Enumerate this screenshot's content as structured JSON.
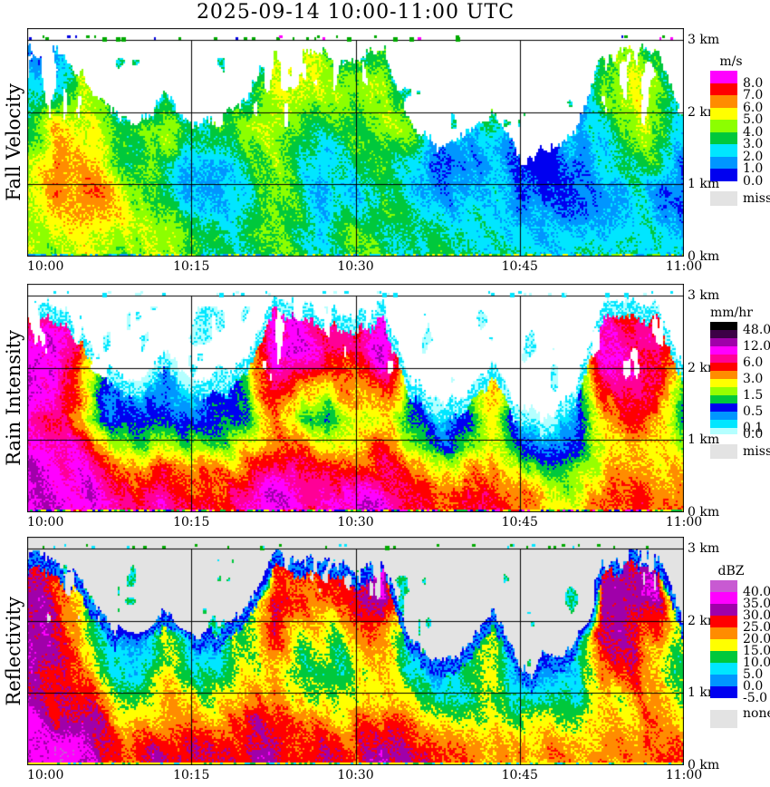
{
  "title": "2025-09-14  10:00-11:00 UTC",
  "axes": {
    "x_ticks": [
      "10:00",
      "10:15",
      "10:30",
      "10:45",
      "11:00"
    ],
    "y_ticks": [
      "0 km",
      "1 km",
      "2 km",
      "3 km"
    ]
  },
  "chart_data": [
    {
      "panel": "fall-velocity",
      "type": "heatmap",
      "ylabel": "Fall Velocity",
      "units": "m/s",
      "x_ticks": [
        "10:00",
        "10:15",
        "10:30",
        "10:45",
        "11:00"
      ],
      "y_ticks": [
        "0 km",
        "1 km",
        "2 km",
        "3 km"
      ],
      "x_range_minutes": [
        0,
        60
      ],
      "y_range_km": [
        0,
        3
      ],
      "background": "#ffffff",
      "colorbar": {
        "title": "m/s",
        "labels": [
          "8.0",
          "7.0",
          "6.0",
          "5.0",
          "4.0",
          "3.0",
          "2.0",
          "1.0",
          "0.0"
        ],
        "missing_label": "miss",
        "missing_color": "#e3e3e3"
      },
      "boundaries": [
        8,
        7,
        6,
        5,
        4,
        3,
        2,
        1,
        0
      ],
      "colors": [
        "#ff00ff",
        "#ff0000",
        "#ff8c00",
        "#ffff00",
        "#8cff00",
        "#00c83c",
        "#00e6ff",
        "#0096ff",
        "#0000f0"
      ],
      "min_valid": 0,
      "echo_top_km": [
        2.95,
        2.9,
        2.55,
        2.0,
        1.85,
        2.25,
        1.8,
        1.9,
        2.2,
        2.95,
        2.9,
        2.8,
        2.7,
        2.95,
        1.8,
        1.5,
        1.7,
        2.1,
        1.35,
        1.45,
        1.7,
        2.9,
        2.95,
        2.85,
        2.0
      ],
      "grid": {
        "times_min": [
          0,
          2.5,
          5,
          7.5,
          10,
          12.5,
          15,
          17.5,
          20,
          22.5,
          25,
          27.5,
          30,
          32.5,
          35,
          37.5,
          40,
          42.5,
          45,
          47.5,
          50,
          52.5,
          55,
          57.5,
          60
        ],
        "heights_km": [
          0.15,
          0.5,
          0.9,
          1.3,
          1.8,
          2.3,
          2.8
        ],
        "values_by_height": [
          [
            4,
            4.5,
            5,
            4.5,
            4,
            4,
            3.5,
            3,
            3.5,
            4,
            3.5,
            3,
            3.5,
            3.5,
            3,
            2.5,
            2.5,
            2.5,
            2,
            1.8,
            2,
            2.5,
            3,
            2.5,
            2
          ],
          [
            4,
            5,
            6,
            5,
            4.5,
            4,
            3.5,
            3,
            3.5,
            4,
            3.5,
            3,
            3.5,
            3.5,
            2.5,
            2,
            2,
            2.2,
            1.6,
            1.6,
            1.8,
            2.2,
            2.8,
            2.2,
            1.8
          ],
          [
            4.5,
            6,
            6.8,
            5.5,
            3.5,
            3,
            2.5,
            2.2,
            3,
            4,
            3,
            2.5,
            3,
            3.2,
            1.5,
            1.2,
            1.2,
            2,
            0.7,
            0.7,
            1.2,
            2,
            2.6,
            1.6,
            1.6
          ],
          [
            4.5,
            6.5,
            6.2,
            4,
            3,
            3.5,
            2,
            2.5,
            3,
            4,
            3,
            2.5,
            3.5,
            3.8,
            1.5,
            0.8,
            1.5,
            2.5,
            0.5,
            0.5,
            1.5,
            3,
            3.5,
            3,
            1.5
          ],
          [
            4,
            6,
            5.5,
            4,
            3.5,
            4.5,
            3,
            3.5,
            3.8,
            4.5,
            4,
            3.8,
            4.2,
            4.5,
            3.5,
            2.5,
            2.8,
            3.5,
            1.5,
            -1,
            2.5,
            3.8,
            4.2,
            3.8,
            2.5
          ],
          [
            2.5,
            3.5,
            4.5,
            2.5,
            -1,
            3.5,
            -1,
            2.5,
            3.5,
            5,
            4.5,
            4.5,
            4.5,
            5,
            2.5,
            -1,
            -1,
            3.5,
            -1,
            -1,
            -1,
            4.2,
            4.5,
            4.2,
            2.5
          ],
          [
            1.5,
            2.5,
            3,
            -1,
            -1,
            -1,
            -1,
            -1,
            -1,
            4.5,
            4.5,
            4,
            3.5,
            4.5,
            -1,
            -1,
            -1,
            -1,
            -1,
            -1,
            -1,
            4,
            4.5,
            3.5,
            -1
          ]
        ]
      }
    },
    {
      "panel": "rain-intensity",
      "type": "heatmap",
      "ylabel": "Rain Intensity",
      "units": "mm/hr",
      "x_ticks": [
        "10:00",
        "10:15",
        "10:30",
        "10:45",
        "11:00"
      ],
      "y_ticks": [
        "0 km",
        "1 km",
        "2 km",
        "3 km"
      ],
      "x_range_minutes": [
        0,
        60
      ],
      "y_range_km": [
        0,
        3
      ],
      "background": "#ffffff",
      "colorbar": {
        "title": "mm/hr",
        "labels": [
          "48.0",
          "12.0",
          "6.0",
          "3.0",
          "1.5",
          "0.5",
          "0.1",
          "0.0"
        ],
        "missing_label": "miss",
        "missing_color": "#e3e3e3"
      },
      "boundaries": [
        48,
        24,
        12,
        8,
        6,
        4,
        3,
        2,
        1.5,
        1,
        0.5,
        0.3,
        0.1,
        0
      ],
      "colors": [
        "#000000",
        "#3c0046",
        "#a000aa",
        "#ff00ff",
        "#ff0096",
        "#ff0000",
        "#ff8c00",
        "#ffff00",
        "#96ff00",
        "#00c83c",
        "#0000f0",
        "#0096ff",
        "#00e6ff",
        "#b4ffff"
      ],
      "min_valid": 0,
      "echo_top_km": [
        2.95,
        2.9,
        2.55,
        2.0,
        1.85,
        2.25,
        1.8,
        1.9,
        2.2,
        2.95,
        2.9,
        2.8,
        2.7,
        2.95,
        1.8,
        1.5,
        1.7,
        2.1,
        1.35,
        1.45,
        1.7,
        2.9,
        2.95,
        2.85,
        2.0
      ],
      "grid": {
        "times_min": [
          0,
          2.5,
          5,
          7.5,
          10,
          12.5,
          15,
          17.5,
          20,
          22.5,
          25,
          27.5,
          30,
          32.5,
          35,
          37.5,
          40,
          42.5,
          45,
          47.5,
          50,
          52.5,
          55,
          57.5,
          60
        ],
        "heights_km": [
          0.15,
          0.5,
          0.9,
          1.3,
          1.8,
          2.3,
          2.8
        ],
        "values_by_height": [
          [
            14,
            12,
            10,
            8,
            7,
            8,
            6,
            6,
            8,
            10,
            8,
            7,
            8,
            8,
            6,
            4.5,
            4.5,
            4.5,
            3,
            2.5,
            3,
            4,
            5,
            4,
            4
          ],
          [
            12,
            10,
            8,
            6,
            4.5,
            5,
            4.5,
            4,
            5,
            8,
            6,
            5,
            6,
            6,
            4,
            3,
            3,
            3.2,
            2,
            1.6,
            2,
            3,
            4,
            3,
            3
          ],
          [
            10,
            8,
            5,
            2.5,
            1.6,
            2,
            1.6,
            1.5,
            2.5,
            4,
            3,
            2.2,
            3,
            4,
            1.6,
            1,
            1.4,
            2,
            0.6,
            0.5,
            1,
            2,
            3,
            2,
            1.6
          ],
          [
            8,
            6,
            2,
            0.7,
            0.6,
            1,
            0.6,
            0.6,
            1,
            3,
            1.2,
            0.8,
            2,
            3,
            0.6,
            0.35,
            0.6,
            2,
            0.12,
            0.12,
            0.5,
            3,
            4,
            3,
            1
          ],
          [
            10,
            7,
            2.5,
            0.3,
            0.06,
            0.5,
            0.12,
            0.3,
            1,
            6,
            3,
            2,
            4,
            6,
            0.5,
            0.12,
            0.3,
            3,
            0.06,
            0.06,
            0.3,
            6,
            6,
            6,
            1
          ],
          [
            8,
            9,
            3.5,
            0.06,
            -1,
            0.4,
            -1,
            0.06,
            2,
            10,
            8,
            7,
            6,
            10,
            0.3,
            -1,
            -1,
            2,
            -1,
            -1,
            -1,
            10,
            8,
            8,
            2
          ],
          [
            5,
            7,
            2.5,
            -1,
            -1,
            -1,
            -1,
            -1,
            -1,
            8,
            8,
            6,
            4,
            8,
            -1,
            -1,
            -1,
            -1,
            -1,
            -1,
            -1,
            8,
            6,
            6,
            -1
          ]
        ]
      }
    },
    {
      "panel": "reflectivity",
      "type": "heatmap",
      "ylabel": "Reflectivity",
      "units": "dBZ",
      "x_ticks": [
        "10:00",
        "10:15",
        "10:30",
        "10:45",
        "11:00"
      ],
      "y_ticks": [
        "0 km",
        "1 km",
        "2 km",
        "3 km"
      ],
      "x_range_minutes": [
        0,
        60
      ],
      "y_range_km": [
        0,
        3
      ],
      "background": "#e3e3e3",
      "colorbar": {
        "title": "dBZ",
        "labels": [
          "40.0",
          "35.0",
          "30.0",
          "25.0",
          "20.0",
          "15.0",
          "10.0",
          "5.0",
          "0.0",
          "-5.0"
        ],
        "missing_label": "none",
        "missing_color": "#e3e3e3"
      },
      "boundaries": [
        40,
        35,
        30,
        25,
        20,
        15,
        10,
        5,
        0,
        -5
      ],
      "colors": [
        "#c85ad2",
        "#ff00ff",
        "#a000aa",
        "#ff0000",
        "#ff8c00",
        "#ffff00",
        "#00c83c",
        "#00e6ff",
        "#0096ff",
        "#0000f0"
      ],
      "min_valid": -5,
      "echo_top_km": [
        2.95,
        2.9,
        2.55,
        2.0,
        1.85,
        2.25,
        1.8,
        1.9,
        2.2,
        2.95,
        2.9,
        2.8,
        2.7,
        2.95,
        1.8,
        1.5,
        1.7,
        2.1,
        1.35,
        1.45,
        1.7,
        2.9,
        2.95,
        2.85,
        2.0
      ],
      "grid": {
        "times_min": [
          0,
          2.5,
          5,
          7.5,
          10,
          12.5,
          15,
          17.5,
          20,
          22.5,
          25,
          27.5,
          30,
          32.5,
          35,
          37.5,
          40,
          42.5,
          45,
          47.5,
          50,
          52.5,
          55,
          57.5,
          60
        ],
        "heights_km": [
          0.15,
          0.5,
          0.9,
          1.3,
          1.8,
          2.3,
          2.8
        ],
        "values_by_height": [
          [
            37,
            36,
            33,
            30,
            28,
            30,
            28,
            27,
            29,
            32,
            30,
            28,
            30,
            30,
            27,
            24,
            23,
            24,
            21,
            20,
            22,
            24,
            26,
            23,
            22
          ],
          [
            36,
            34,
            32,
            26,
            24,
            26,
            24,
            24,
            26,
            30,
            28,
            25,
            27,
            28,
            23,
            20,
            20,
            22,
            17,
            15,
            18,
            22,
            24,
            20,
            20
          ],
          [
            34,
            32,
            28,
            20,
            18,
            20,
            18,
            17,
            20,
            24,
            20,
            18,
            20,
            22,
            16,
            13,
            14,
            18,
            9,
            8,
            13,
            20,
            22,
            18,
            15
          ],
          [
            32,
            28,
            20,
            12,
            11,
            15,
            11,
            11,
            15,
            20,
            15,
            12,
            17,
            20,
            11,
            7,
            11,
            17,
            4,
            3,
            9,
            22,
            24,
            20,
            11
          ],
          [
            33,
            28,
            18,
            7,
            3,
            12,
            5,
            7,
            14,
            26,
            18,
            15,
            20,
            26,
            9,
            3,
            7,
            18,
            1,
            0,
            7,
            28,
            28,
            26,
            11
          ],
          [
            32,
            30,
            20,
            2,
            -99,
            12,
            -99,
            3,
            15,
            32,
            28,
            27,
            24,
            32,
            7,
            -99,
            -99,
            14,
            -99,
            -99,
            -99,
            32,
            30,
            30,
            11
          ],
          [
            28,
            31,
            18,
            -99,
            -99,
            -99,
            -99,
            -99,
            -99,
            30,
            30,
            28,
            22,
            32,
            -99,
            -99,
            -99,
            -99,
            -99,
            -99,
            -99,
            31,
            28,
            28,
            -99
          ]
        ]
      }
    }
  ]
}
